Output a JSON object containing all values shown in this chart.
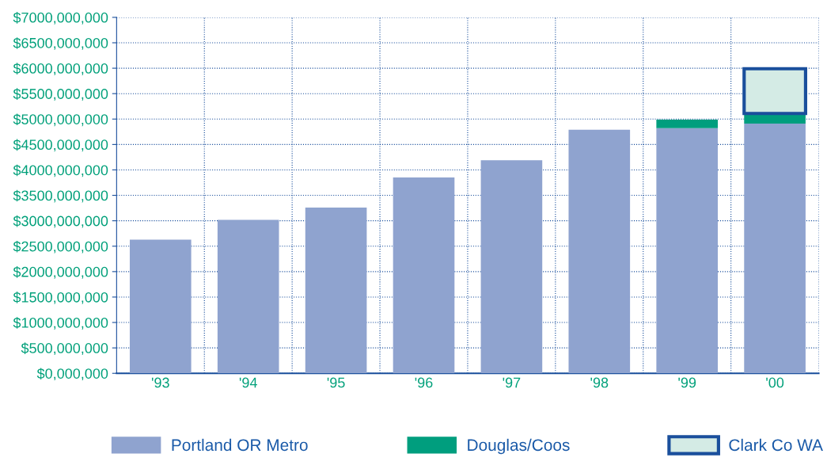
{
  "chart_data": {
    "type": "bar",
    "stacked": true,
    "categories": [
      "'93",
      "'94",
      "'95",
      "'96",
      "'97",
      "'98",
      "'99",
      "'00"
    ],
    "series": [
      {
        "name": "Portland OR Metro",
        "color": "#8fa3cf",
        "values": [
          2630000000,
          3020000000,
          3260000000,
          3850000000,
          4190000000,
          4790000000,
          4820000000,
          4910000000
        ]
      },
      {
        "name": "Douglas/Coos",
        "color": "#009e7e",
        "values": [
          null,
          null,
          null,
          null,
          null,
          null,
          170000000,
          200000000
        ]
      },
      {
        "name": "Clark Co WA",
        "color": "#d4ebe5",
        "values": [
          null,
          null,
          null,
          null,
          null,
          null,
          null,
          880000000
        ]
      }
    ],
    "ylim": [
      0,
      7000000000
    ],
    "yticks": [
      {
        "value": 0,
        "label": "$0,000,000"
      },
      {
        "value": 500000000,
        "label": "$500,000,000"
      },
      {
        "value": 1000000000,
        "label": "$1000,000,000"
      },
      {
        "value": 1500000000,
        "label": "$1500,000,000"
      },
      {
        "value": 2000000000,
        "label": "$2000,000,000"
      },
      {
        "value": 2500000000,
        "label": "$2500,000,000"
      },
      {
        "value": 3000000000,
        "label": "$3000,000,000"
      },
      {
        "value": 3500000000,
        "label": "$3500,000,000"
      },
      {
        "value": 4000000000,
        "label": "$4000,000,000"
      },
      {
        "value": 4500000000,
        "label": "$4500,000,000"
      },
      {
        "value": 5000000000,
        "label": "$5000,000,000"
      },
      {
        "value": 5500000000,
        "label": "$5500,000,000"
      },
      {
        "value": 6000000000,
        "label": "$6000,000,000"
      },
      {
        "value": 6500000000,
        "label": "$6500,000,000"
      },
      {
        "value": 7000000000,
        "label": "$7000,000,000"
      }
    ],
    "grid": true,
    "legend": "bottom"
  }
}
